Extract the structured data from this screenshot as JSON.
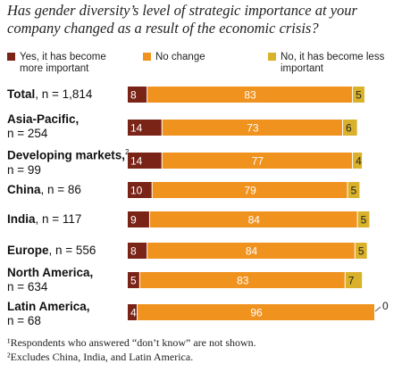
{
  "question": "Has gender diversity’s level of strategic importance at your company changed as a result of the economic crisis?",
  "colors": {
    "more": "#7a2418",
    "no_change": "#f0921e",
    "less": "#d9b12a",
    "divider": "#ffffff"
  },
  "legend": [
    {
      "key": "more",
      "label": "Yes, it has become more important"
    },
    {
      "key": "no_change",
      "label": "No change"
    },
    {
      "key": "less",
      "label": "No, it has become less important"
    }
  ],
  "rows": [
    {
      "name": "Total",
      "sup": "",
      "n": ", n = 1,814"
    },
    {
      "name": "Asia-Pacific,",
      "sup": "",
      "n": "n = 254"
    },
    {
      "name": "Developing markets,",
      "sup": "2",
      "n": " n = 99"
    },
    {
      "name": "China",
      "sup": "",
      "n": ", n = 86"
    },
    {
      "name": "India",
      "sup": "",
      "n": ", n = 117"
    },
    {
      "name": "Europe",
      "sup": "",
      "n": ", n = 556"
    },
    {
      "name": "North America,",
      "sup": "",
      "n": "n = 634"
    },
    {
      "name": "Latin America,",
      "sup": "",
      "n": "n = 68"
    }
  ],
  "chart_data": {
    "type": "bar",
    "orientation": "horizontal-stacked",
    "unit": "%",
    "categories": [
      "Total, n = 1,814",
      "Asia-Pacific, n = 254",
      "Developing markets, n = 99",
      "China, n = 86",
      "India, n = 117",
      "Europe, n = 556",
      "North America, n = 634",
      "Latin America, n = 68"
    ],
    "series": [
      {
        "name": "Yes, it has become more important",
        "values": [
          8,
          14,
          14,
          10,
          9,
          8,
          5,
          4
        ]
      },
      {
        "name": "No change",
        "values": [
          83,
          73,
          77,
          79,
          84,
          84,
          83,
          96
        ]
      },
      {
        "name": "No, it has become less important",
        "values": [
          5,
          6,
          4,
          5,
          5,
          5,
          7,
          0
        ]
      }
    ],
    "data_labels": [
      [
        "8",
        "83",
        "5"
      ],
      [
        "14",
        "73",
        "6"
      ],
      [
        "14",
        "77",
        "4"
      ],
      [
        "10",
        "79",
        "5"
      ],
      [
        "9",
        "84",
        "5"
      ],
      [
        "8",
        "84",
        "5"
      ],
      [
        "5",
        "83",
        "7"
      ],
      [
        "4",
        "96",
        "0"
      ]
    ],
    "xlim": [
      0,
      100
    ],
    "legend_position": "top",
    "grid": false
  },
  "footnotes": [
    "¹Respondents who answered “don’t know” are not shown.",
    "²Excludes China, India, and Latin America."
  ]
}
